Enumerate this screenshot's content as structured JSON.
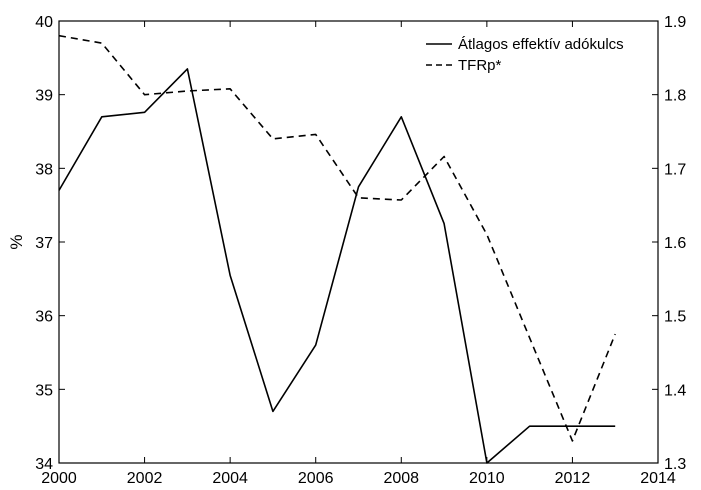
{
  "chart_data": {
    "type": "line",
    "ylabel": "%",
    "xlim": [
      2000,
      2014
    ],
    "x_ticks": [
      2000,
      2002,
      2004,
      2006,
      2008,
      2010,
      2012,
      2014
    ],
    "y_left_lim": [
      34,
      40
    ],
    "y_left_ticks": [
      34,
      35,
      36,
      37,
      38,
      39,
      40
    ],
    "y_right_lim": [
      1.3,
      1.9
    ],
    "y_right_ticks": [
      "1.3",
      "1.4",
      "1.5",
      "1.6",
      "1.7",
      "1.8",
      "1.9"
    ],
    "grid": false,
    "legend_position": "top-right",
    "series": [
      {
        "name": "Átlagos effektív adókulcs",
        "axis": "left",
        "style": "solid",
        "x": [
          2000,
          2001,
          2002,
          2003,
          2004,
          2005,
          2006,
          2007,
          2008,
          2009,
          2010,
          2011,
          2012,
          2013
        ],
        "values": [
          37.7,
          38.7,
          38.76,
          39.35,
          36.55,
          34.7,
          35.6,
          37.75,
          38.7,
          37.25,
          34.0,
          34.5,
          34.5,
          34.5
        ]
      },
      {
        "name": "TFRp*",
        "axis": "right",
        "style": "dashed",
        "x": [
          2000,
          2001,
          2002,
          2003,
          2004,
          2005,
          2006,
          2007,
          2008,
          2009,
          2010,
          2011,
          2012,
          2013
        ],
        "values": [
          1.88,
          1.87,
          1.8,
          1.805,
          1.808,
          1.74,
          1.746,
          1.66,
          1.657,
          1.716,
          1.61,
          1.47,
          1.33,
          1.475
        ]
      }
    ]
  }
}
